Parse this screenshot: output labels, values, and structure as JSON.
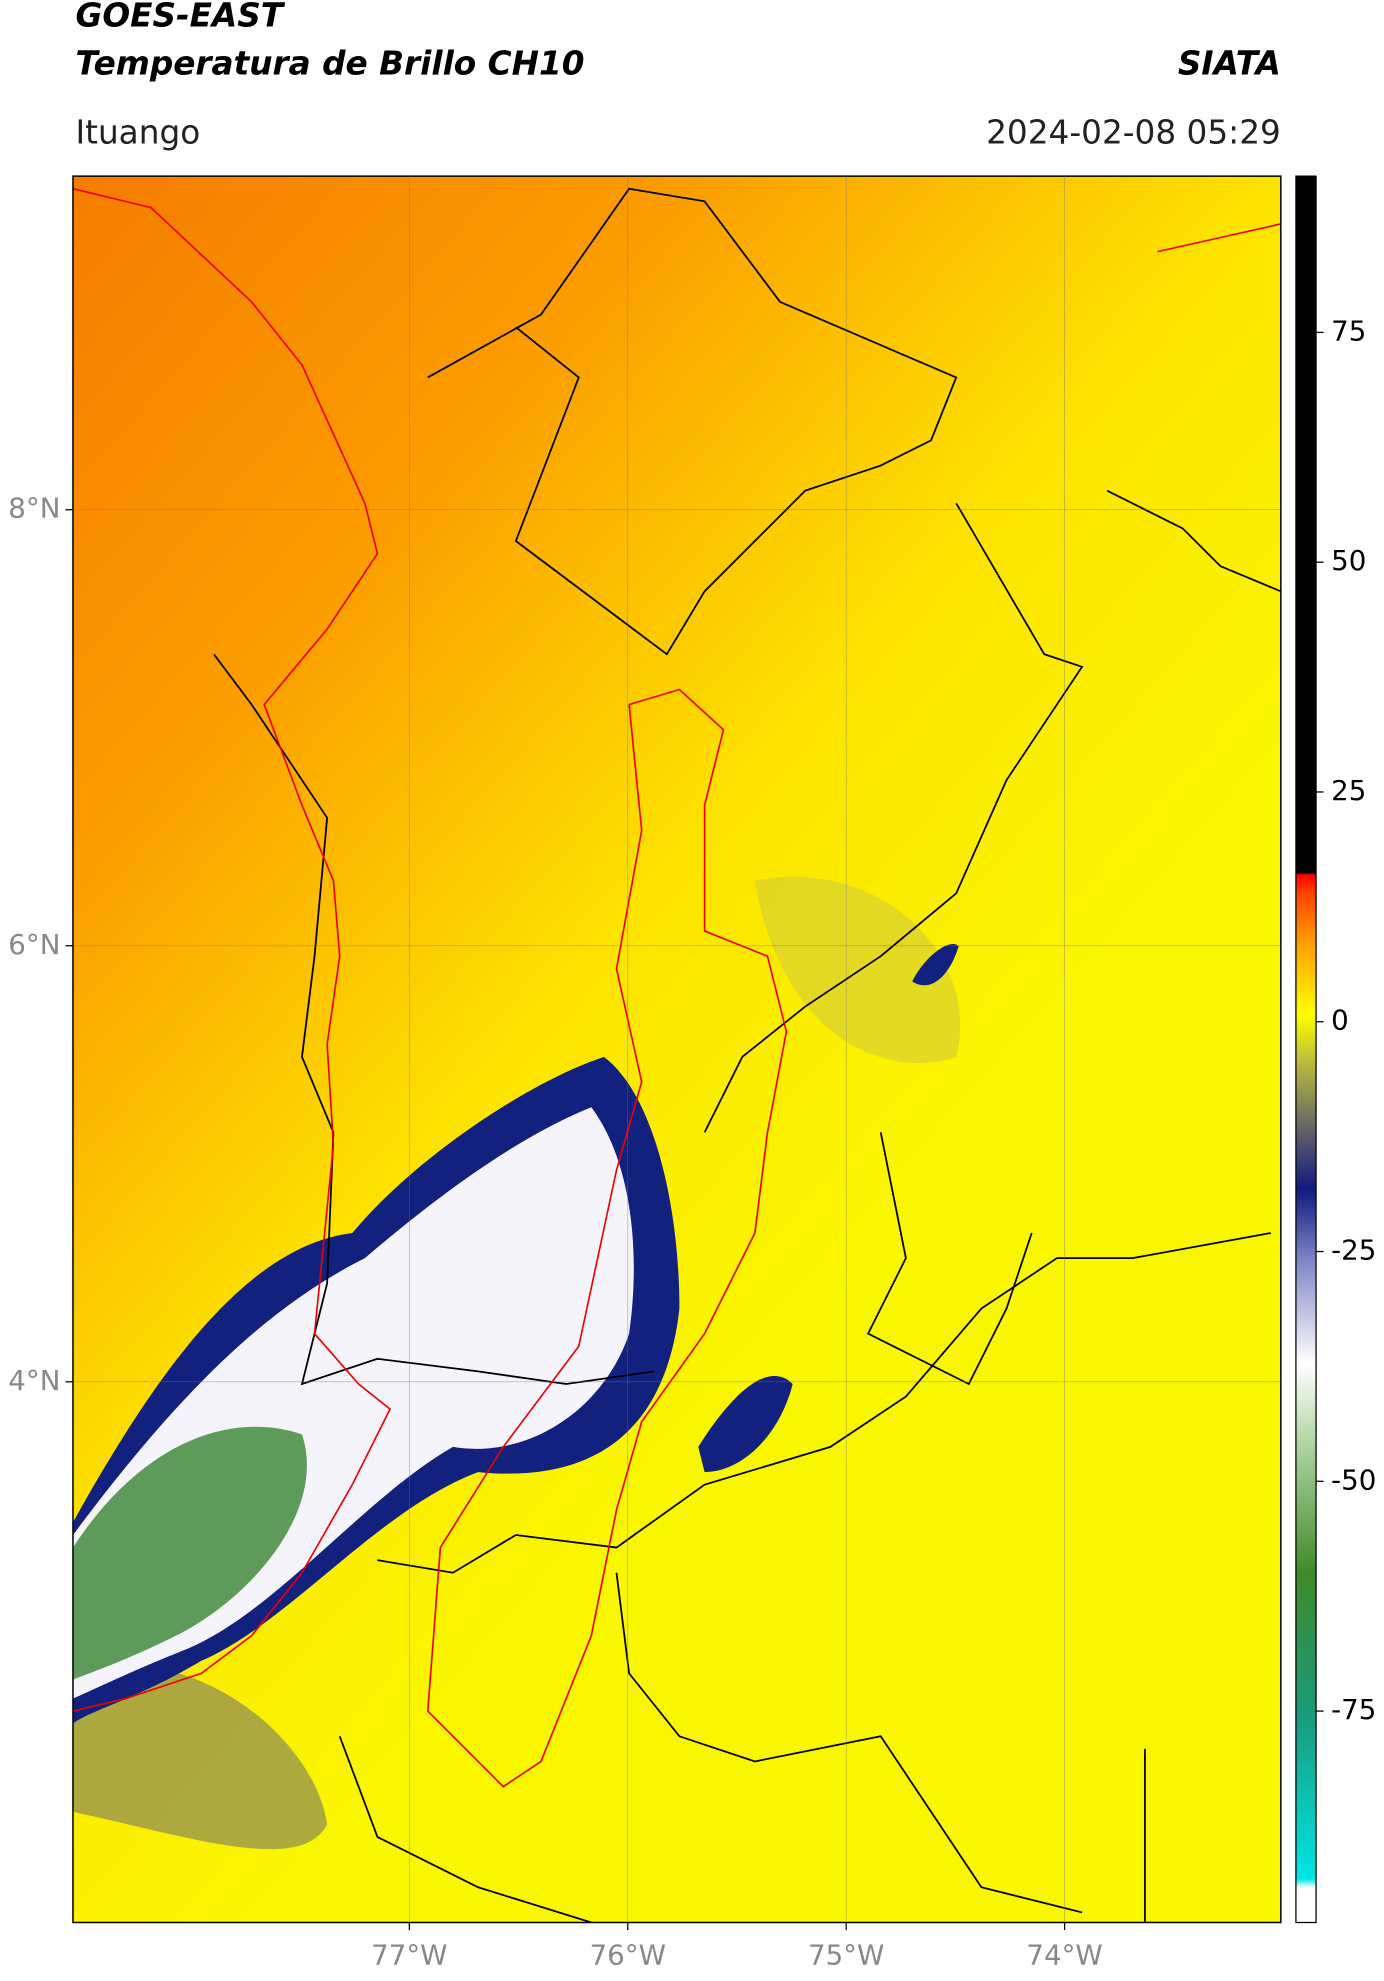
{
  "header": {
    "title": "GOES-EAST",
    "subtitle": "Temperatura de Brillo CH10",
    "source": "SIATA",
    "location": "Ituango",
    "datetime": "2024-02-08 05:29"
  },
  "map": {
    "lon_range": [
      -78.54,
      -73.01
    ],
    "lat_range": [
      1.52,
      9.53
    ],
    "lon_ticks": [
      {
        "value": -77,
        "label": "77°W"
      },
      {
        "value": -76,
        "label": "76°W"
      },
      {
        "value": -75,
        "label": "75°W"
      },
      {
        "value": -74,
        "label": "74°W"
      }
    ],
    "lat_ticks": [
      {
        "value": 8,
        "label": "8°N"
      },
      {
        "value": 6,
        "label": "6°N"
      },
      {
        "value": 4,
        "label": "4°N"
      }
    ],
    "grid": true
  },
  "colorbar": {
    "range": [
      -98,
      92
    ],
    "ticks": [
      -75,
      -50,
      -25,
      0,
      25,
      50,
      75
    ]
  }
}
